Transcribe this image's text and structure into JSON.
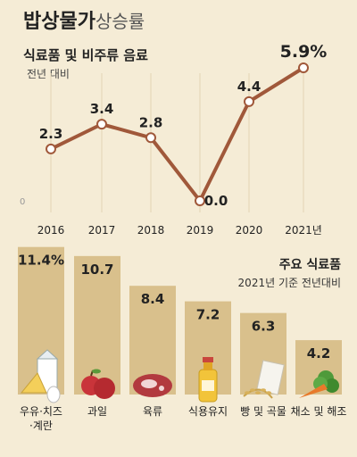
{
  "header": {
    "title_bold": "밥상물가",
    "title_light": "상승률"
  },
  "chart_data": [
    {
      "type": "line",
      "title": "식료품 및 비주류 음료",
      "subtitle": "전년 대비",
      "x": [
        "2016",
        "2017",
        "2018",
        "2019",
        "2020",
        "2021년"
      ],
      "values": [
        2.3,
        3.4,
        2.8,
        0.0,
        4.4,
        5.9
      ],
      "value_labels": [
        "2.3",
        "3.4",
        "2.8",
        "0.0",
        "4.4",
        "5.9%"
      ],
      "baseline_label": "0",
      "ylim": [
        0,
        5.9
      ],
      "grid": "vertical",
      "line_color": "#a0583a"
    },
    {
      "type": "bar",
      "title": "주요 식료품",
      "subtitle": "2021년 기준 전년대비",
      "categories": [
        "우유·치즈·계란",
        "과일",
        "육류",
        "식용유지",
        "빵 및 곡물",
        "채소 및 해조"
      ],
      "category_lines": [
        [
          "우유·치즈",
          "·계란"
        ],
        [
          "과일"
        ],
        [
          "육류"
        ],
        [
          "식용유지"
        ],
        [
          "빵 및 곡물"
        ],
        [
          "채소 및 해조"
        ]
      ],
      "values": [
        11.4,
        10.7,
        8.4,
        7.2,
        6.3,
        4.2
      ],
      "value_labels": [
        "11.4%",
        "10.7",
        "8.4",
        "7.2",
        "6.3",
        "4.2"
      ],
      "icons": [
        "milk-cheese-egg-icon",
        "apple-icon",
        "meat-icon",
        "oil-bottle-icon",
        "bread-grain-icon",
        "vegetable-icon"
      ],
      "bar_color": "#d9c08c"
    }
  ]
}
